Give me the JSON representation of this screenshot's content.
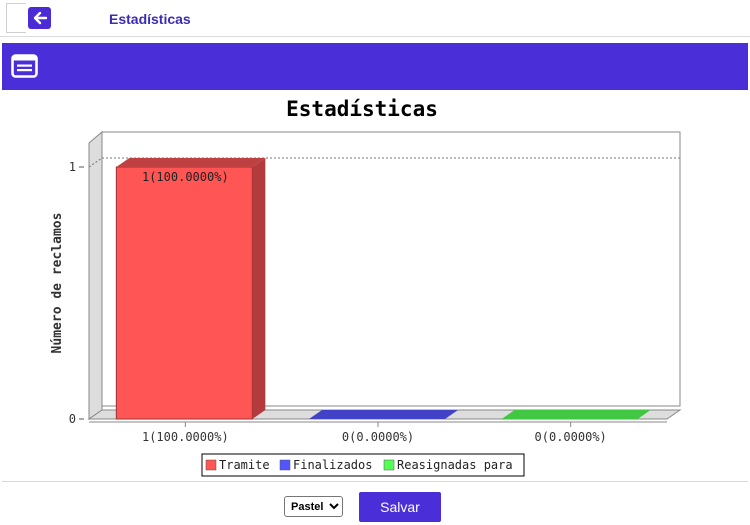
{
  "header": {
    "title": "Estadísticas"
  },
  "colors": {
    "accent": "#4a2fd9"
  },
  "icons": {
    "back": "arrow-left-icon",
    "banner": "list-icon"
  },
  "chart_data": {
    "type": "bar",
    "title": "Estadísticas",
    "ylabel": "Número de reclamos",
    "xlabel": "",
    "ylim": [
      0,
      1
    ],
    "yticks": [
      "0",
      "1"
    ],
    "categories": [
      "1(100.0000%)",
      "0(0.0000%)",
      "0(0.0000%)"
    ],
    "values": [
      1,
      0,
      0
    ],
    "data_labels": [
      "1(100.0000%)",
      "",
      ""
    ],
    "colors": [
      "#ff5555",
      "#5555ff",
      "#55ff55"
    ],
    "series_names": [
      "Tramite",
      "Finalizados",
      "Reasignadas para"
    ],
    "grid": true,
    "style": "3d",
    "legend": "bottom-center"
  },
  "controls": {
    "palette_options": [
      "Pastel"
    ],
    "palette_selected": "Pastel",
    "save_label": "Salvar"
  }
}
